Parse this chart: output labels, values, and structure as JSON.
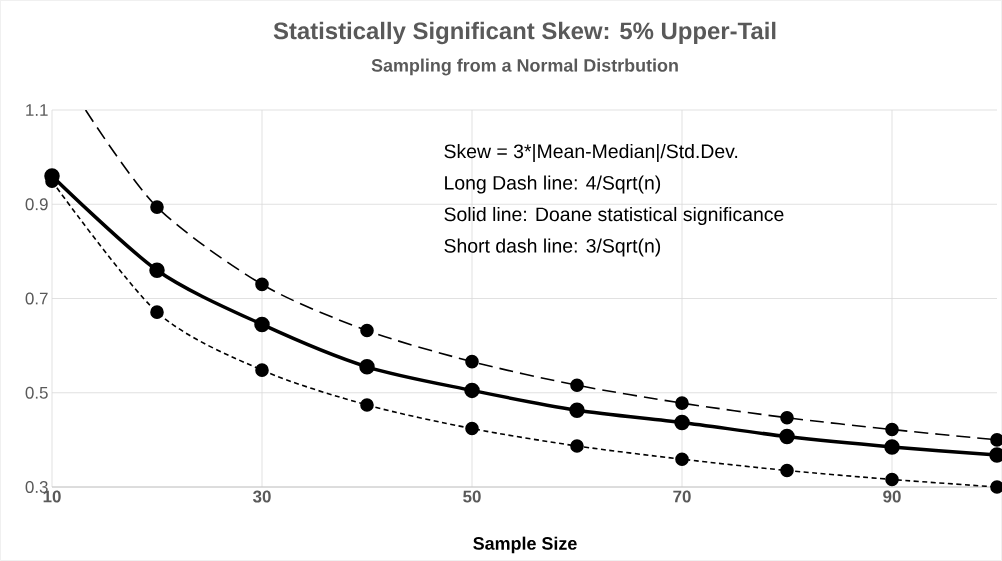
{
  "chart_data": {
    "type": "line",
    "title": "Statistically Significant Skew: 5% Upper-Tail",
    "subtitle": "Sampling from a Normal Distrbution",
    "xlabel": "Sample Size",
    "x": [
      10,
      20,
      30,
      40,
      50,
      60,
      70,
      80,
      90,
      100
    ],
    "series": [
      {
        "color": "#000000",
        "line_style": "dashed",
        "x": [
          13.2,
          20,
          30,
          40,
          50,
          60,
          70,
          80,
          90,
          100
        ],
        "values": [
          1.1,
          0.894,
          0.73,
          0.632,
          0.566,
          0.516,
          0.478,
          0.447,
          0.422,
          0.4
        ]
      },
      {
        "color": "#000000",
        "line_style": "solid",
        "values": [
          0.96,
          0.76,
          0.645,
          0.555,
          0.505,
          0.463,
          0.437,
          0.407,
          0.385,
          0.368
        ]
      },
      {
        "color": "#000000",
        "line_style": "dotted",
        "values": [
          0.949,
          0.671,
          0.548,
          0.474,
          0.424,
          0.387,
          0.359,
          0.335,
          0.316,
          0.3
        ]
      }
    ],
    "xlim": [
      10,
      100
    ],
    "xticks": [
      10,
      30,
      50,
      70,
      90
    ],
    "ylim": [
      0.3,
      1.1
    ],
    "yticks": [
      0.3,
      0.5,
      0.7,
      0.9,
      1.1
    ],
    "grid": true,
    "marker": "circle",
    "annotations": [
      "Skew = 3*|Mean-Median|/Std.Dev.",
      "Long Dash line: 4/Sqrt(n)",
      "Solid line: Doane statistical significance",
      "Short dash line: 3/Sqrt(n)"
    ]
  }
}
